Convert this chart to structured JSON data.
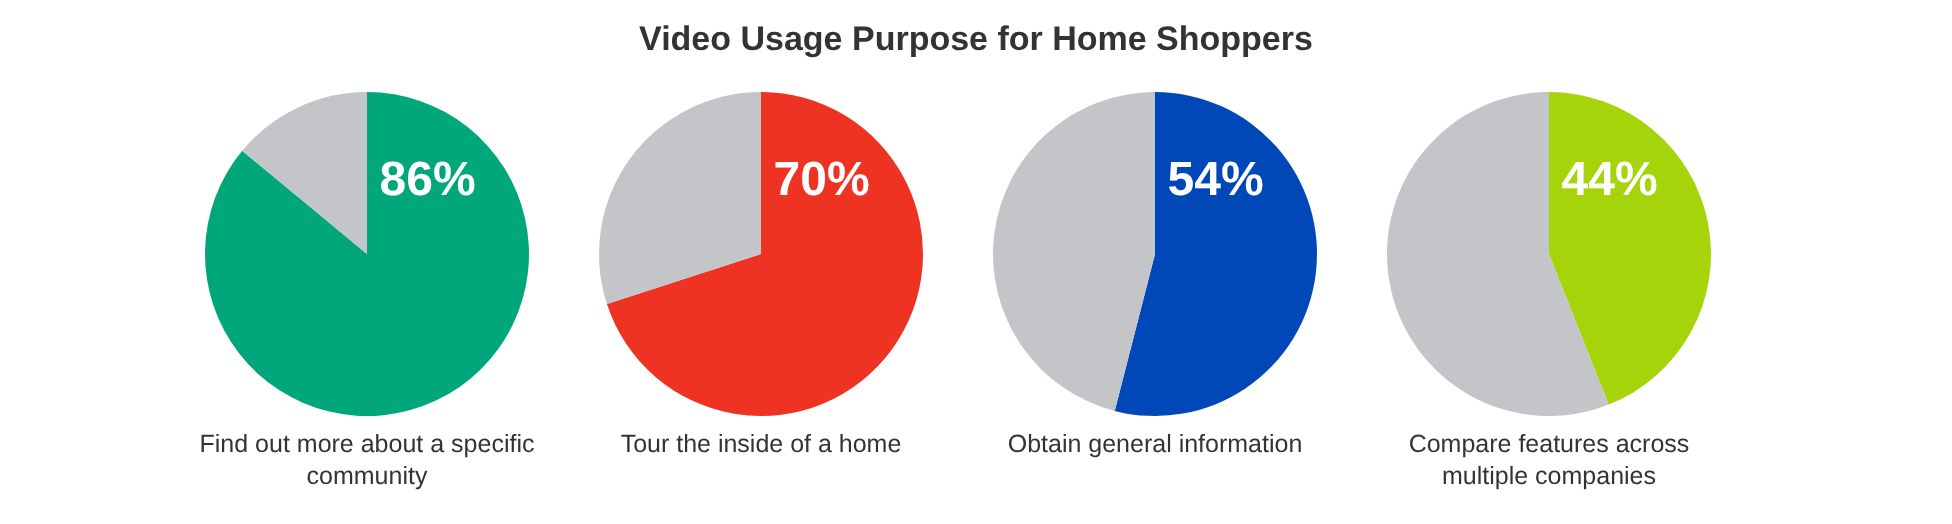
{
  "chart_data": [
    {
      "type": "pie",
      "title": "Video Usage Purpose for Home Shoppers",
      "xlabel": "Find out more about a specific community",
      "categories": [
        null,
        null
      ],
      "values": [
        86,
        14
      ],
      "colors": [
        "#00a77a",
        "#c4c5c9"
      ],
      "value_labels": [
        "86%",
        null
      ],
      "legend": false
    },
    {
      "type": "pie",
      "xlabel": "Tour the inside of a home",
      "categories": [
        null,
        null
      ],
      "values": [
        70,
        30
      ],
      "colors": [
        "#ee3322",
        "#c4c5c9"
      ],
      "value_labels": [
        "70%",
        null
      ],
      "legend": false
    },
    {
      "type": "pie",
      "xlabel": "Obtain general information",
      "categories": [
        null,
        null
      ],
      "values": [
        54,
        46
      ],
      "colors": [
        "#0048b8",
        "#c4c5c9"
      ],
      "value_labels": [
        "54%",
        null
      ],
      "legend": false
    },
    {
      "type": "pie",
      "xlabel": "Compare features across multiple companies",
      "categories": [
        null,
        null
      ],
      "values": [
        44,
        56
      ],
      "colors": [
        "#a6d40a",
        "#c4c5c9"
      ],
      "value_labels": [
        "44%",
        null
      ],
      "legend": false
    }
  ]
}
